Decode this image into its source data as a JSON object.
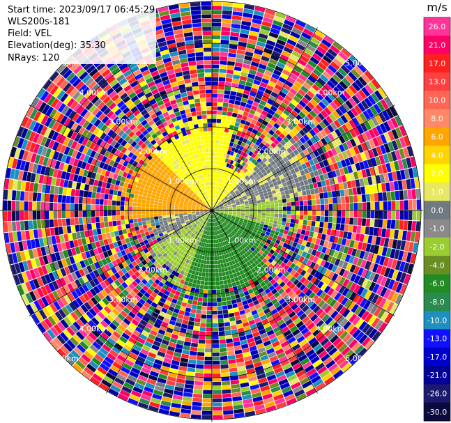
{
  "header": {
    "start_time_label": "Start time",
    "start_time_value": "2023/09/17 06:45:29",
    "site": "WLS200s-181",
    "field_label": "Field",
    "field_value": "VEL",
    "elevation_label": "Elevation(deg)",
    "elevation_value": "35.30",
    "nrays_label": "NRays",
    "nrays_value": "120"
  },
  "colorbar": {
    "unit": "m/s",
    "levels": [
      {
        "value": "26.0",
        "color": "#ff3399"
      },
      {
        "value": "21.0",
        "color": "#ff0066"
      },
      {
        "value": "17.0",
        "color": "#ff2020"
      },
      {
        "value": "13.0",
        "color": "#ff4040"
      },
      {
        "value": "10.0",
        "color": "#ff6655"
      },
      {
        "value": "8.0",
        "color": "#ff8866"
      },
      {
        "value": "6.0",
        "color": "#ffa500"
      },
      {
        "value": "4.0",
        "color": "#ffd400"
      },
      {
        "value": "2.0",
        "color": "#ffff00"
      },
      {
        "value": "1.0",
        "color": "#e8e864"
      },
      {
        "value": "0.0",
        "color": "#707a80"
      },
      {
        "value": "-1.0",
        "color": "#8a8a8a"
      },
      {
        "value": "-2.0",
        "color": "#9acd32"
      },
      {
        "value": "-4.0",
        "color": "#6b8e23"
      },
      {
        "value": "-6.0",
        "color": "#228b22"
      },
      {
        "value": "-8.0",
        "color": "#2a8a50"
      },
      {
        "value": "-10.0",
        "color": "#1e90c0"
      },
      {
        "value": "-13.0",
        "color": "#1010ff"
      },
      {
        "value": "-17.0",
        "color": "#0000cc"
      },
      {
        "value": "-21.0",
        "color": "#000099"
      },
      {
        "value": "-26.0",
        "color": "#1a1a6e"
      },
      {
        "value": "-30.0",
        "color": "#0a0a40"
      }
    ]
  },
  "chart_data": {
    "type": "heatmap",
    "subtype": "radar-ppi-polar",
    "field": "VEL",
    "unit": "m/s",
    "n_rays": 120,
    "range_rings": [
      {
        "label": "1.00km",
        "value": 1.0
      },
      {
        "label": "2.00km",
        "value": 2.0
      },
      {
        "label": "3.00km",
        "value": 3.0
      },
      {
        "label": "4.00km",
        "value": 4.0
      },
      {
        "label": "5.00km",
        "value": 5.0
      }
    ],
    "max_range_km": 5.05,
    "spoke_azimuths_deg": [
      0,
      30,
      60,
      90,
      120,
      150,
      180,
      210,
      240,
      270,
      300,
      330
    ],
    "near_field_sectors": [
      {
        "azimuth_from": 315,
        "azimuth_to": 15,
        "max_range_km": 1.9,
        "value": 2.0
      },
      {
        "azimuth_from": 15,
        "azimuth_to": 45,
        "max_range_km": 1.1,
        "value": 2.0
      },
      {
        "azimuth_from": 45,
        "azimuth_to": 80,
        "max_range_km": 2.4,
        "value": 0.0
      },
      {
        "azimuth_from": 80,
        "azimuth_to": 105,
        "max_range_km": 1.7,
        "value": -2.0
      },
      {
        "azimuth_from": 105,
        "azimuth_to": 135,
        "max_range_km": 1.3,
        "value": -6.0
      },
      {
        "azimuth_from": 135,
        "azimuth_to": 200,
        "max_range_km": 1.9,
        "value": -6.0
      },
      {
        "azimuth_from": 200,
        "azimuth_to": 240,
        "max_range_km": 1.7,
        "value": -2.0
      },
      {
        "azimuth_from": 240,
        "azimuth_to": 265,
        "max_range_km": 1.3,
        "value": 0.0
      },
      {
        "azimuth_from": 265,
        "azimuth_to": 315,
        "max_range_km": 1.9,
        "value": 6.0
      }
    ],
    "outer_field": "noisy values spanning -30.0 to 26.0 m/s"
  }
}
